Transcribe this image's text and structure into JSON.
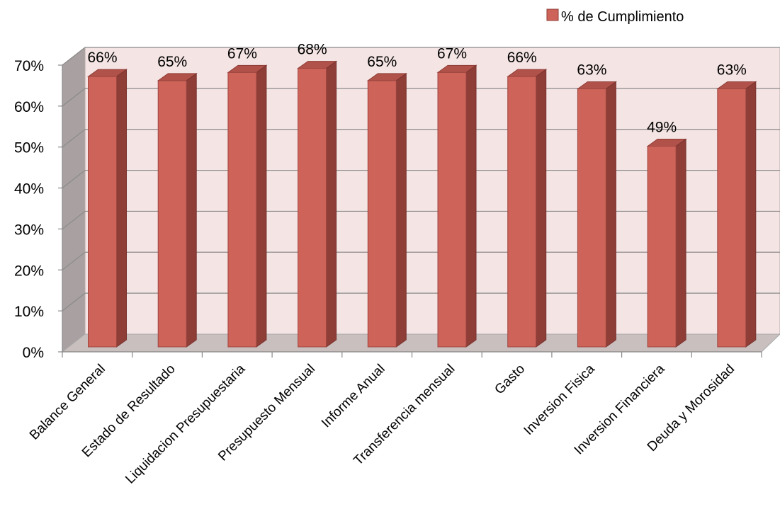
{
  "chart_data": {
    "type": "bar",
    "title": "",
    "xlabel": "",
    "ylabel": "",
    "categories": [
      "Balance General",
      "Estado de Resultado",
      "Liquidacion Presupuestaria",
      "Presupuesto Mensual",
      "Informe Anual",
      "Transferencia mensual",
      "Gasto",
      "Inversion Fisica",
      "Inversion Financiera",
      "Deuda y Morosidad"
    ],
    "series": [
      {
        "name": "% de Cumplimiento",
        "values": [
          66,
          65,
          67,
          68,
          65,
          67,
          66,
          63,
          49,
          63
        ],
        "labels": [
          "66%",
          "65%",
          "67%",
          "68%",
          "65%",
          "67%",
          "66%",
          "63%",
          "49%",
          "63%"
        ],
        "color": "#cd6359"
      }
    ],
    "ylim": [
      0,
      70
    ],
    "yticks": [
      "0%",
      "10%",
      "20%",
      "30%",
      "40%",
      "50%",
      "60%",
      "70%"
    ],
    "grid": true,
    "legend_position": "top-right",
    "style": "3d-column",
    "colors": {
      "bar_front": "#cd6359",
      "bar_side": "#8e3d37",
      "bar_top": "#b0524a",
      "plot_back": "#f4e3e3",
      "floor": "#c8bebe",
      "side_wall": "#a8a0a0",
      "gridline": "#8a8a8a"
    }
  }
}
